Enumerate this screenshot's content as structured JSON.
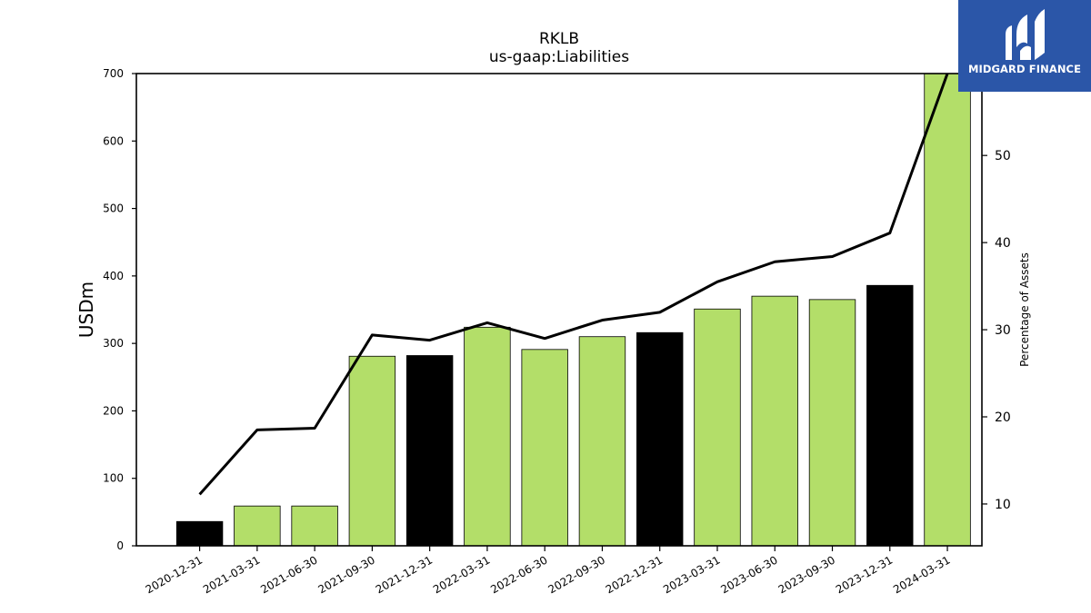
{
  "logo": {
    "text": "MIDGARD FINANCE",
    "bg_color": "#2b56a8"
  },
  "chart_data": {
    "type": "bar",
    "title": "RKLB",
    "subtitle": "us-gaap:Liabilities",
    "ylabel": "USDm",
    "y2label": "Percentage of Assets",
    "ylim": [
      0,
      700
    ],
    "y2lim": [
      5.2,
      59.4
    ],
    "yticks": [
      0,
      100,
      200,
      300,
      400,
      500,
      600,
      700
    ],
    "y2ticks": [
      10,
      20,
      30,
      40,
      50
    ],
    "categories": [
      "2020-12-31",
      "2021-03-31",
      "2021-06-30",
      "2021-09-30",
      "2021-12-31",
      "2022-03-31",
      "2022-06-30",
      "2022-09-30",
      "2022-12-31",
      "2023-03-31",
      "2023-06-30",
      "2023-09-30",
      "2023-12-31",
      "2024-03-31"
    ],
    "series": [
      {
        "type": "bar",
        "values": [
          36,
          59,
          59,
          281,
          282,
          324,
          291,
          310,
          316,
          351,
          370,
          365,
          386,
          700
        ],
        "colors": [
          "#000000",
          "#b3de69",
          "#b3de69",
          "#b3de69",
          "#000000",
          "#b3de69",
          "#b3de69",
          "#b3de69",
          "#000000",
          "#b3de69",
          "#b3de69",
          "#b3de69",
          "#000000",
          "#b3de69"
        ]
      },
      {
        "type": "line",
        "axis": "right",
        "values": [
          11.1,
          18.5,
          18.7,
          29.4,
          28.8,
          30.8,
          29.0,
          31.1,
          32.0,
          35.5,
          37.8,
          38.4,
          41.1,
          59.4
        ],
        "color": "#000000"
      }
    ],
    "grid": false,
    "legend": "none"
  }
}
